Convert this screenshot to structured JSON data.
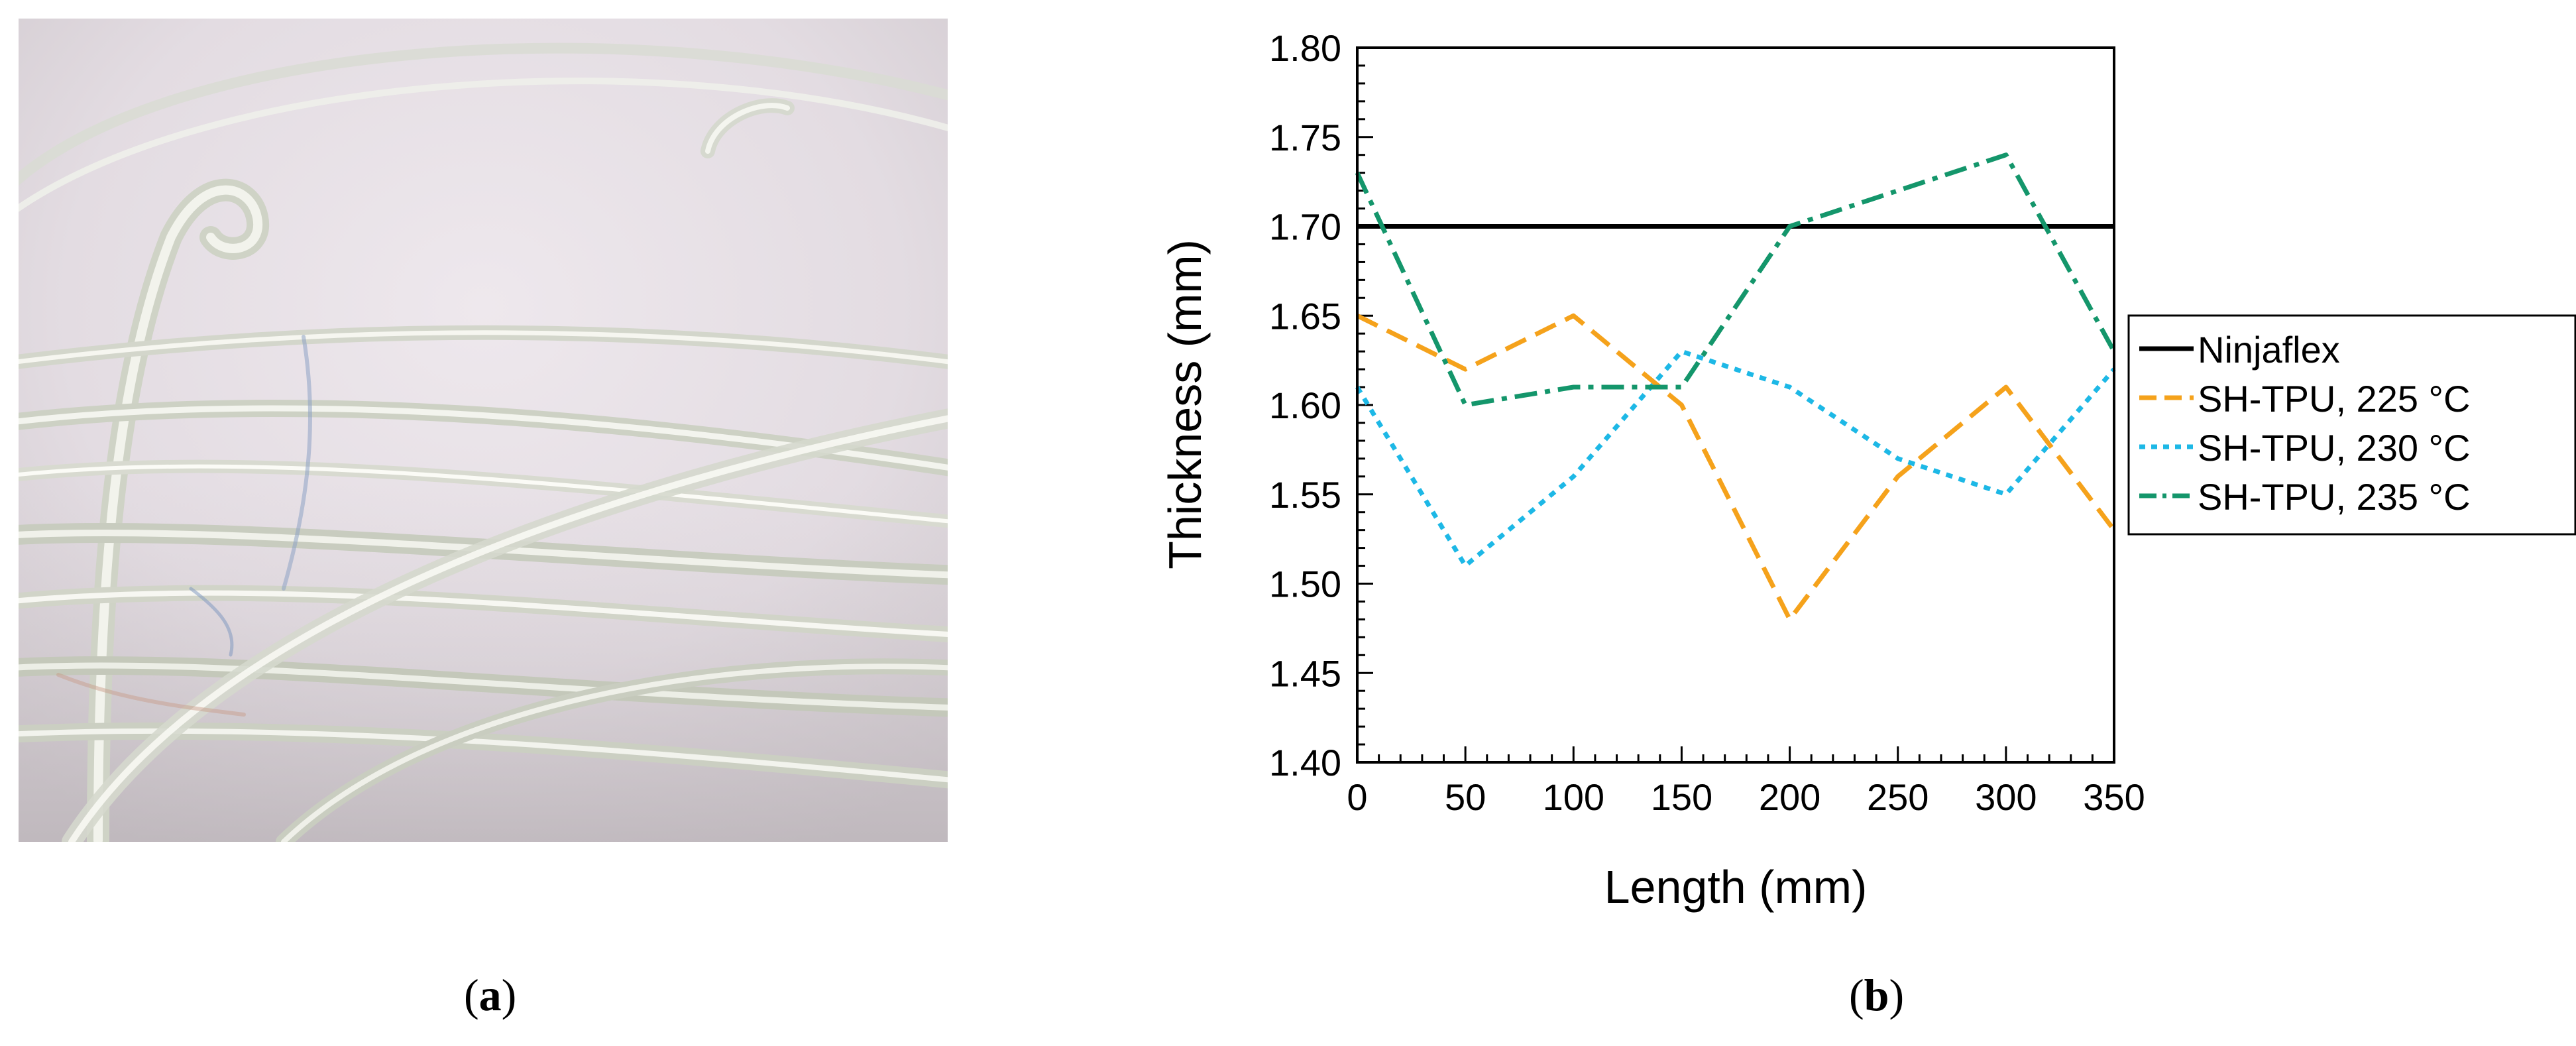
{
  "figure": {
    "panel_a_label": "a",
    "panel_b_label": "b"
  },
  "photo": {
    "subject": "filament-coil-photo"
  },
  "colors": {
    "ninjaflex": "#000000",
    "sh225": "#f5a21b",
    "sh230": "#1db8e6",
    "sh235": "#14966b",
    "photo_bg": "#e9e2e7"
  },
  "chart_data": {
    "type": "line",
    "title": "",
    "xlabel": "Length (mm)",
    "ylabel": "Thickness (mm)",
    "xlim": [
      0,
      350
    ],
    "ylim": [
      1.4,
      1.8
    ],
    "x_ticks": [
      0,
      50,
      100,
      150,
      200,
      250,
      300,
      350
    ],
    "x_tick_labels": [
      "0",
      "50",
      "100",
      "150",
      "200",
      "250",
      "300",
      "350"
    ],
    "y_ticks": [
      1.4,
      1.45,
      1.5,
      1.55,
      1.6,
      1.65,
      1.7,
      1.75,
      1.8
    ],
    "y_tick_labels": [
      "1.40",
      "1.45",
      "1.50",
      "1.55",
      "1.60",
      "1.65",
      "1.70",
      "1.75",
      "1.80"
    ],
    "grid": false,
    "legend_position": "right-outside",
    "series": [
      {
        "name": "Ninjaflex",
        "style": "solid",
        "color": "#000000",
        "x": [
          0,
          350
        ],
        "y": [
          1.7,
          1.7
        ]
      },
      {
        "name": "SH-TPU, 225 °C",
        "style": "dashed",
        "color": "#f5a21b",
        "x": [
          0,
          50,
          100,
          150,
          200,
          250,
          300,
          350
        ],
        "y": [
          1.65,
          1.62,
          1.65,
          1.6,
          1.48,
          1.56,
          1.61,
          1.53
        ]
      },
      {
        "name": "SH-TPU, 230 °C",
        "style": "dotted",
        "color": "#1db8e6",
        "x": [
          0,
          50,
          100,
          150,
          200,
          250,
          300,
          350
        ],
        "y": [
          1.61,
          1.51,
          1.56,
          1.63,
          1.61,
          1.57,
          1.55,
          1.62
        ]
      },
      {
        "name": "SH-TPU, 235 °C",
        "style": "dashdot",
        "color": "#14966b",
        "x": [
          0,
          50,
          100,
          150,
          200,
          250,
          300,
          350
        ],
        "y": [
          1.73,
          1.6,
          1.61,
          1.61,
          1.7,
          1.72,
          1.74,
          1.63
        ]
      }
    ]
  }
}
